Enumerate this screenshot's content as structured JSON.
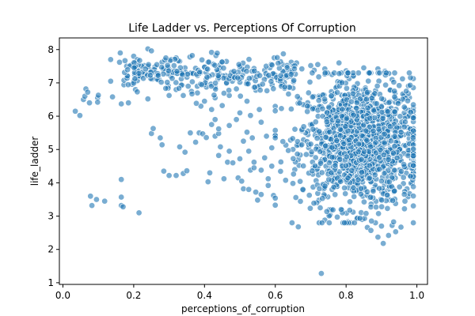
{
  "chart_data": {
    "type": "scatter",
    "title": "Life Ladder vs. Perceptions Of Corruption",
    "xlabel": "perceptions_of_corruption",
    "ylabel": "life_ladder",
    "xlim": [
      -0.01,
      1.03
    ],
    "ylim": [
      0.95,
      8.35
    ],
    "xticks": [
      "0.0",
      "0.2",
      "0.4",
      "0.6",
      "0.8",
      "1.0"
    ],
    "yticks": [
      "1",
      "2",
      "3",
      "4",
      "5",
      "6",
      "7",
      "8"
    ],
    "grid": false,
    "legend": "none",
    "point_color": "#1f77b4",
    "point_alpha": 0.6,
    "points": [
      [
        0.035,
        6.15
      ],
      [
        0.048,
        6.02
      ],
      [
        0.058,
        6.5
      ],
      [
        0.062,
        6.6
      ],
      [
        0.065,
        6.82
      ],
      [
        0.07,
        6.72
      ],
      [
        0.075,
        6.4
      ],
      [
        0.098,
        6.55
      ],
      [
        0.098,
        6.42
      ],
      [
        0.1,
        6.63
      ],
      [
        0.078,
        3.6
      ],
      [
        0.082,
        3.32
      ],
      [
        0.095,
        3.5
      ],
      [
        0.118,
        3.45
      ],
      [
        0.165,
        3.32
      ],
      [
        0.17,
        3.28
      ],
      [
        0.165,
        3.57
      ],
      [
        0.165,
        4.1
      ],
      [
        0.215,
        3.1
      ],
      [
        0.135,
        7.05
      ],
      [
        0.14,
        6.58
      ],
      [
        0.135,
        7.7
      ],
      [
        0.16,
        7.62
      ],
      [
        0.162,
        7.9
      ],
      [
        0.18,
        7.5
      ],
      [
        0.165,
        6.37
      ],
      [
        0.185,
        6.4
      ],
      [
        0.205,
        6.8
      ],
      [
        0.21,
        6.73
      ],
      [
        0.24,
        6.52
      ],
      [
        0.25,
        5.48
      ],
      [
        0.255,
        5.63
      ],
      [
        0.275,
        5.35
      ],
      [
        0.28,
        5.14
      ],
      [
        0.285,
        4.35
      ],
      [
        0.3,
        4.22
      ],
      [
        0.32,
        4.22
      ],
      [
        0.34,
        4.28
      ],
      [
        0.35,
        4.36
      ],
      [
        0.33,
        5.08
      ],
      [
        0.345,
        4.92
      ],
      [
        0.36,
        5.5
      ],
      [
        0.375,
        5.22
      ],
      [
        0.385,
        5.5
      ],
      [
        0.395,
        5.47
      ],
      [
        0.405,
        5.36
      ],
      [
        0.41,
        4.03
      ],
      [
        0.415,
        4.3
      ],
      [
        0.42,
        5.75
      ],
      [
        0.43,
        5.4
      ],
      [
        0.44,
        5.48
      ],
      [
        0.445,
        5.08
      ],
      [
        0.455,
        4.12
      ],
      [
        0.465,
        4.62
      ],
      [
        0.48,
        4.6
      ],
      [
        0.495,
        4.15
      ],
      [
        0.505,
        4.05
      ],
      [
        0.51,
        3.82
      ],
      [
        0.525,
        3.8
      ],
      [
        0.53,
        4.38
      ],
      [
        0.54,
        4.45
      ],
      [
        0.545,
        3.72
      ],
      [
        0.55,
        3.48
      ],
      [
        0.56,
        3.65
      ],
      [
        0.58,
        3.92
      ],
      [
        0.595,
        3.62
      ],
      [
        0.6,
        3.33
      ],
      [
        0.665,
        2.68
      ],
      [
        0.73,
        1.28
      ],
      [
        0.74,
        2.88
      ],
      [
        0.755,
        3.03
      ],
      [
        0.775,
        2.97
      ],
      [
        0.805,
        2.83
      ],
      [
        0.83,
        2.92
      ],
      [
        0.86,
        2.66
      ],
      [
        0.87,
        2.57
      ],
      [
        0.89,
        2.37
      ],
      [
        0.9,
        2.7
      ],
      [
        0.905,
        2.18
      ],
      [
        0.92,
        2.42
      ],
      [
        0.93,
        2.72
      ],
      [
        0.94,
        2.53
      ],
      [
        0.955,
        2.67
      ],
      [
        0.965,
        3.22
      ],
      [
        0.975,
        3.58
      ],
      [
        0.972,
        3.82
      ],
      [
        0.98,
        4.98
      ],
      [
        0.982,
        5.6
      ],
      [
        0.985,
        4.72
      ],
      [
        0.2,
        7.8
      ],
      [
        0.21,
        7.7
      ],
      [
        0.23,
        7.52
      ],
      [
        0.245,
        7.4
      ],
      [
        0.26,
        7.48
      ],
      [
        0.28,
        7.62
      ],
      [
        0.3,
        7.4
      ],
      [
        0.315,
        7.34
      ],
      [
        0.33,
        7.65
      ],
      [
        0.345,
        7.45
      ],
      [
        0.365,
        7.3
      ],
      [
        0.38,
        7.22
      ],
      [
        0.4,
        7.47
      ],
      [
        0.41,
        7.62
      ],
      [
        0.425,
        7.56
      ],
      [
        0.44,
        7.35
      ],
      [
        0.46,
        7.22
      ],
      [
        0.48,
        7.18
      ],
      [
        0.5,
        7.02
      ],
      [
        0.52,
        6.98
      ],
      [
        0.535,
        7.15
      ],
      [
        0.55,
        7.28
      ],
      [
        0.57,
        7.38
      ],
      [
        0.585,
        7.45
      ],
      [
        0.6,
        7.18
      ],
      [
        0.62,
        7.55
      ],
      [
        0.645,
        7.62
      ],
      [
        0.66,
        7.6
      ],
      [
        0.675,
        7.42
      ],
      [
        0.7,
        7.52
      ],
      [
        0.71,
        7.38
      ],
      [
        0.72,
        7.55
      ],
      [
        0.74,
        7.42
      ],
      [
        0.76,
        7.25
      ],
      [
        0.78,
        7.6
      ],
      [
        0.8,
        7.36
      ],
      [
        0.82,
        7.22
      ],
      [
        0.85,
        7.45
      ],
      [
        0.87,
        7.3
      ],
      [
        0.89,
        7.42
      ],
      [
        0.91,
        7.35
      ],
      [
        0.93,
        7.1
      ],
      [
        0.95,
        6.92
      ],
      [
        0.24,
        8.02
      ],
      [
        0.25,
        7.96
      ],
      [
        0.3,
        6.62
      ],
      [
        0.32,
        6.8
      ],
      [
        0.34,
        6.62
      ],
      [
        0.38,
        6.7
      ],
      [
        0.4,
        6.45
      ],
      [
        0.42,
        6.2
      ],
      [
        0.43,
        6.55
      ],
      [
        0.45,
        6.32
      ],
      [
        0.47,
        6.62
      ],
      [
        0.49,
        6.82
      ],
      [
        0.5,
        6.1
      ],
      [
        0.52,
        6.45
      ],
      [
        0.53,
        6.02
      ],
      [
        0.545,
        6.78
      ],
      [
        0.555,
        6.2
      ],
      [
        0.39,
        6.3
      ],
      [
        0.43,
        5.9
      ],
      [
        0.44,
        5.62
      ],
      [
        0.47,
        5.72
      ],
      [
        0.49,
        5.9
      ],
      [
        0.51,
        5.25
      ],
      [
        0.52,
        5.52
      ],
      [
        0.535,
        5.35
      ],
      [
        0.56,
        5.82
      ],
      [
        0.575,
        5.4
      ],
      [
        0.59,
        5.05
      ],
      [
        0.44,
        4.82
      ],
      [
        0.47,
        4.95
      ],
      [
        0.5,
        4.72
      ],
      [
        0.525,
        4.95
      ],
      [
        0.54,
        4.62
      ],
      [
        0.56,
        4.38
      ],
      [
        0.57,
        4.75
      ],
      [
        0.58,
        4.12
      ],
      [
        0.59,
        4.5
      ]
    ],
    "cluster": {
      "x_center": 0.84,
      "x_spread": 0.085,
      "x_range": [
        0.6,
        0.99
      ],
      "y_center": 5.2,
      "y_spread": 0.95,
      "y_range": [
        2.8,
        7.3
      ],
      "count": 1350
    },
    "band": {
      "x_range": [
        0.17,
        0.66
      ],
      "y_center": 7.28,
      "y_spread": 0.28,
      "count": 260
    }
  }
}
